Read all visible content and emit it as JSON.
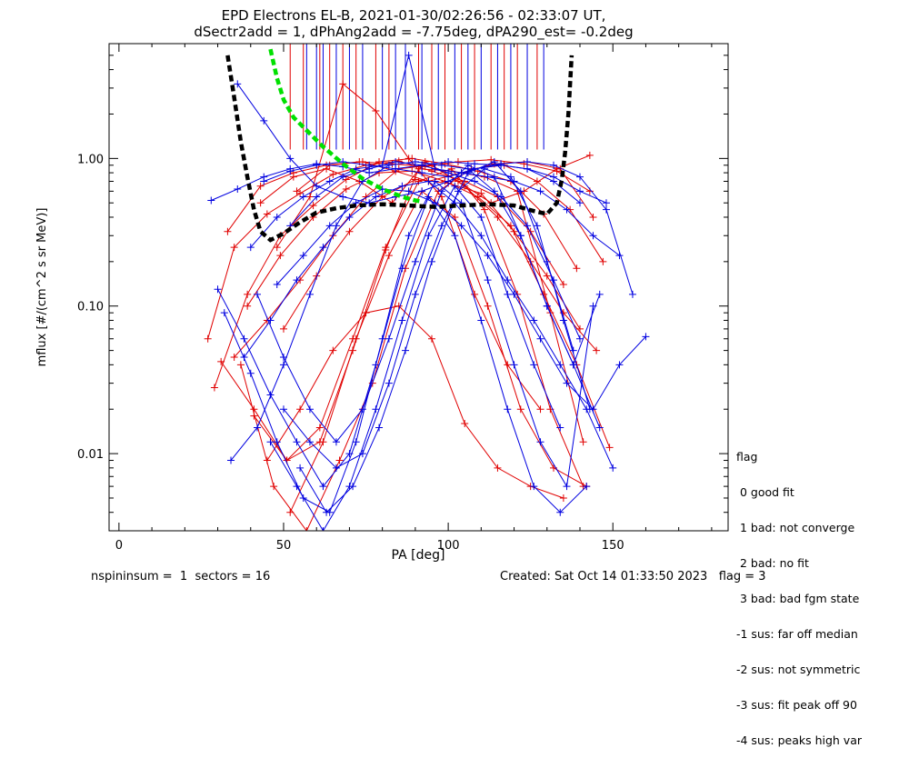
{
  "page": {
    "title_line1": "EPD Electrons EL-B, 2021-01-30/02:26:56 - 02:33:07 UT,",
    "title_line2": "dSectr2add = 1, dPhAng2add = -7.75deg, dPA290_est=  -0.2deg",
    "footer_left": "nspininsum =  1  sectors = 16",
    "footer_right": "Created: Sat Oct 14 01:33:50 2023   flag = 3"
  },
  "legend": {
    "title": "flag",
    "items": [
      " 0 good fit",
      " 1 bad: not converge",
      " 2 bad: no fit",
      " 3 bad: bad fgm state",
      "-1 sus: far off median",
      "-2 sus: not symmetric",
      "-3 sus: fit peak off 90",
      "-4 sus: peaks high var"
    ]
  },
  "colors": {
    "series_red": "#e00000",
    "series_blue": "#0000e0",
    "fit_black": "#000000",
    "fit_green": "#00e000"
  },
  "chart_data": {
    "type": "line",
    "xlabel": "PA [deg]",
    "ylabel": "mflux [#/(cm^2 s sr MeV)]",
    "xlim": [
      -3,
      185
    ],
    "ylim": [
      0.003,
      6.0
    ],
    "yscale": "log",
    "xticks": [
      0,
      50,
      100,
      150
    ],
    "xtick_labels": [
      "0",
      "50",
      "100",
      "150"
    ],
    "yticks": [
      0.01,
      0.1,
      1.0
    ],
    "ytick_labels": [
      "0.01",
      "0.10",
      "1.00"
    ],
    "vertical_lines": {
      "y_from": 1.15,
      "red_x": [
        52,
        56,
        61,
        64,
        68,
        72,
        78,
        82,
        91,
        95,
        99,
        104,
        108,
        113,
        117,
        121,
        127
      ],
      "blue_x": [
        57,
        60,
        62,
        66,
        70,
        74,
        80,
        84,
        87,
        92,
        97,
        102,
        106,
        110,
        115,
        119,
        124,
        129
      ]
    },
    "series": [
      {
        "color": "black",
        "style": "dashed",
        "x": [
          33,
          35,
          37,
          39,
          41,
          43,
          46,
          50,
          55,
          60,
          66,
          72,
          80,
          88,
          96,
          104,
          112,
          120,
          126,
          130,
          133,
          134.5,
          135.5,
          136.5,
          137.5
        ],
        "y": [
          5.0,
          2.6,
          1.3,
          0.75,
          0.45,
          0.32,
          0.28,
          0.31,
          0.37,
          0.43,
          0.46,
          0.48,
          0.49,
          0.48,
          0.47,
          0.48,
          0.49,
          0.48,
          0.44,
          0.42,
          0.5,
          0.72,
          1.1,
          2.0,
          5.0
        ]
      },
      {
        "color": "green",
        "style": "dashed",
        "x": [
          46,
          48,
          50,
          53,
          57,
          62,
          68,
          74,
          80,
          86,
          90,
          92
        ],
        "y": [
          5.5,
          3.5,
          2.5,
          1.9,
          1.55,
          1.2,
          0.92,
          0.73,
          0.62,
          0.55,
          0.52,
          0.51
        ]
      },
      {
        "color": "red",
        "style": "solid",
        "x": [
          27,
          35,
          45,
          55,
          65,
          75,
          85,
          95,
          105,
          115,
          125,
          135
        ],
        "y": [
          0.06,
          0.25,
          0.42,
          0.58,
          0.78,
          0.9,
          0.96,
          0.82,
          0.7,
          0.55,
          0.32,
          0.14
        ]
      },
      {
        "color": "red",
        "style": "solid",
        "x": [
          29,
          39,
          49,
          59,
          69,
          79,
          89,
          99,
          109,
          119,
          129,
          139
        ],
        "y": [
          0.028,
          0.12,
          0.3,
          0.48,
          0.72,
          0.95,
          1.0,
          0.92,
          0.82,
          0.7,
          0.42,
          0.18
        ]
      },
      {
        "color": "red",
        "style": "solid",
        "x": [
          31,
          41,
          51,
          61,
          71,
          81,
          91,
          101,
          111,
          121,
          131,
          141
        ],
        "y": [
          0.042,
          0.02,
          0.009,
          0.012,
          0.05,
          0.24,
          0.85,
          0.82,
          0.75,
          0.6,
          0.09,
          0.012
        ]
      },
      {
        "color": "red",
        "style": "solid",
        "x": [
          33,
          43,
          53,
          63,
          73,
          83,
          93,
          103,
          113,
          123,
          133,
          143
        ],
        "y": [
          0.32,
          0.65,
          0.8,
          0.9,
          0.95,
          0.92,
          0.88,
          0.95,
          0.98,
          0.92,
          0.82,
          0.6
        ]
      },
      {
        "color": "red",
        "style": "solid",
        "x": [
          35,
          45,
          55,
          65,
          75,
          85,
          95,
          105,
          115,
          125,
          135,
          145
        ],
        "y": [
          0.045,
          0.08,
          0.15,
          0.3,
          0.55,
          0.85,
          0.9,
          0.65,
          0.4,
          0.2,
          0.09,
          0.05
        ]
      },
      {
        "color": "red",
        "style": "solid",
        "x": [
          37,
          47,
          57,
          67,
          77,
          87,
          97,
          107,
          117,
          127,
          137,
          147
        ],
        "y": [
          0.04,
          0.006,
          0.003,
          0.009,
          0.03,
          0.18,
          0.6,
          0.85,
          0.9,
          0.7,
          0.45,
          0.2
        ]
      },
      {
        "color": "red",
        "style": "solid",
        "x": [
          39,
          49,
          59,
          69,
          79,
          89,
          99,
          109,
          119,
          129,
          139,
          149
        ],
        "y": [
          0.1,
          0.22,
          0.4,
          0.62,
          0.8,
          0.82,
          0.7,
          0.55,
          0.35,
          0.12,
          0.04,
          0.011
        ]
      },
      {
        "color": "red",
        "style": "solid",
        "x": [
          41,
          51,
          61,
          71,
          81,
          91,
          101,
          111,
          121,
          131,
          141
        ],
        "y": [
          0.018,
          0.009,
          0.015,
          0.06,
          0.25,
          0.7,
          0.85,
          0.45,
          0.12,
          0.02,
          0.006
        ]
      },
      {
        "color": "red",
        "style": "solid",
        "x": [
          43,
          53,
          63,
          73,
          83,
          93,
          103,
          113,
          123,
          133,
          143
        ],
        "y": [
          0.5,
          0.75,
          0.85,
          0.7,
          0.5,
          0.95,
          0.7,
          0.5,
          0.6,
          0.85,
          1.05
        ]
      },
      {
        "color": "red",
        "style": "solid",
        "x": [
          45,
          55,
          65,
          75,
          85,
          95,
          105,
          115,
          125,
          135
        ],
        "y": [
          0.009,
          0.02,
          0.05,
          0.09,
          0.1,
          0.06,
          0.016,
          0.008,
          0.006,
          0.005
        ]
      },
      {
        "color": "red",
        "style": "solid",
        "x": [
          48,
          58,
          68,
          78,
          88,
          98,
          108,
          118,
          128
        ],
        "y": [
          0.25,
          0.55,
          3.2,
          2.1,
          1.0,
          0.55,
          0.12,
          0.04,
          0.02
        ]
      },
      {
        "color": "red",
        "style": "solid",
        "x": [
          50,
          60,
          70,
          80,
          90,
          100,
          110,
          120,
          130,
          140
        ],
        "y": [
          0.07,
          0.16,
          0.32,
          0.55,
          0.72,
          0.68,
          0.58,
          0.32,
          0.16,
          0.07
        ]
      },
      {
        "color": "red",
        "style": "solid",
        "x": [
          52,
          62,
          72,
          82,
          92,
          102,
          112,
          122,
          132,
          142
        ],
        "y": [
          0.004,
          0.012,
          0.06,
          0.22,
          0.6,
          0.4,
          0.1,
          0.02,
          0.008,
          0.006
        ]
      },
      {
        "color": "red",
        "style": "solid",
        "x": [
          54,
          64,
          74,
          84,
          94,
          104,
          114,
          124,
          134,
          144
        ],
        "y": [
          0.6,
          0.9,
          0.95,
          0.82,
          0.7,
          0.8,
          0.92,
          0.95,
          0.85,
          0.4
        ]
      },
      {
        "color": "blue",
        "style": "solid",
        "x": [
          28,
          36,
          44,
          52,
          60,
          68,
          76,
          84,
          92,
          100,
          108,
          116,
          124,
          132,
          140
        ],
        "y": [
          0.52,
          0.62,
          0.75,
          0.85,
          0.92,
          0.88,
          0.8,
          0.85,
          0.9,
          0.95,
          0.92,
          0.9,
          0.85,
          0.7,
          0.5
        ]
      },
      {
        "color": "blue",
        "style": "solid",
        "x": [
          30,
          38,
          46,
          54,
          62,
          70,
          78,
          86,
          94,
          102,
          110,
          118,
          126,
          134,
          142
        ],
        "y": [
          0.13,
          0.06,
          0.025,
          0.012,
          0.006,
          0.01,
          0.04,
          0.18,
          0.55,
          0.3,
          0.08,
          0.02,
          0.006,
          0.004,
          0.006
        ]
      },
      {
        "color": "blue",
        "style": "solid",
        "x": [
          32,
          40,
          48,
          56,
          64,
          72,
          80,
          88,
          96,
          104,
          112,
          120,
          128,
          136,
          144
        ],
        "y": [
          0.09,
          0.035,
          0.012,
          0.005,
          0.004,
          0.012,
          0.06,
          0.3,
          0.7,
          0.5,
          0.15,
          0.04,
          0.012,
          0.006,
          0.1
        ]
      },
      {
        "color": "blue",
        "style": "solid",
        "x": [
          34,
          42,
          50,
          58,
          66,
          74,
          82,
          90,
          98,
          106,
          114,
          122,
          130,
          138,
          146
        ],
        "y": [
          0.009,
          0.015,
          0.04,
          0.12,
          0.35,
          0.7,
          0.9,
          0.95,
          0.9,
          0.85,
          0.6,
          0.3,
          0.1,
          0.04,
          0.015
        ]
      },
      {
        "color": "blue",
        "style": "solid",
        "x": [
          36,
          44,
          52,
          60,
          68,
          76,
          84,
          92,
          100,
          108,
          116,
          124,
          132,
          140,
          148
        ],
        "y": [
          3.2,
          1.8,
          1.0,
          0.65,
          0.55,
          0.5,
          0.55,
          0.6,
          0.7,
          0.85,
          0.9,
          0.85,
          0.75,
          0.6,
          0.5
        ]
      },
      {
        "color": "blue",
        "style": "solid",
        "x": [
          38,
          46,
          54,
          62,
          70,
          78,
          86,
          94,
          102,
          110,
          118,
          126,
          134,
          142,
          150
        ],
        "y": [
          0.045,
          0.08,
          0.15,
          0.25,
          0.4,
          0.55,
          0.65,
          0.7,
          0.5,
          0.3,
          0.15,
          0.08,
          0.04,
          0.02,
          0.008
        ]
      },
      {
        "color": "blue",
        "style": "solid",
        "x": [
          40,
          48,
          56,
          64,
          72,
          80,
          88,
          96,
          104,
          112,
          120,
          128,
          136,
          144,
          152
        ],
        "y": [
          0.25,
          0.4,
          0.55,
          0.7,
          0.85,
          0.9,
          5.0,
          0.85,
          0.8,
          0.75,
          0.7,
          0.6,
          0.45,
          0.3,
          0.22
        ]
      },
      {
        "color": "blue",
        "style": "solid",
        "x": [
          42,
          50,
          58,
          66,
          74,
          82,
          90,
          98,
          106,
          114,
          122,
          130,
          138,
          146
        ],
        "y": [
          0.12,
          0.045,
          0.02,
          0.012,
          0.02,
          0.06,
          0.2,
          0.6,
          0.9,
          0.75,
          0.3,
          0.1,
          0.04,
          0.12
        ]
      },
      {
        "color": "blue",
        "style": "solid",
        "x": [
          44,
          52,
          60,
          68,
          76,
          84,
          92,
          100,
          108,
          116,
          124,
          132,
          140,
          148,
          156
        ],
        "y": [
          0.7,
          0.82,
          0.9,
          0.95,
          0.9,
          0.85,
          0.8,
          0.75,
          0.85,
          0.92,
          0.95,
          0.9,
          0.75,
          0.45,
          0.12
        ]
      },
      {
        "color": "blue",
        "style": "solid",
        "x": [
          46,
          54,
          62,
          70,
          78,
          86,
          94,
          102,
          110,
          118,
          126,
          134
        ],
        "y": [
          0.012,
          0.006,
          0.003,
          0.006,
          0.02,
          0.08,
          0.3,
          0.65,
          0.4,
          0.12,
          0.04,
          0.015
        ]
      },
      {
        "color": "blue",
        "style": "solid",
        "x": [
          48,
          56,
          64,
          72,
          80,
          88,
          96,
          104,
          112,
          120,
          128,
          136,
          144,
          152,
          160
        ],
        "y": [
          0.14,
          0.22,
          0.35,
          0.5,
          0.62,
          0.6,
          0.5,
          0.35,
          0.22,
          0.12,
          0.06,
          0.03,
          0.02,
          0.04,
          0.062
        ]
      },
      {
        "color": "blue",
        "style": "solid",
        "x": [
          50,
          58,
          66,
          74,
          82,
          90,
          98,
          106,
          114,
          122,
          130,
          138
        ],
        "y": [
          0.02,
          0.012,
          0.008,
          0.01,
          0.03,
          0.12,
          0.35,
          0.8,
          0.95,
          0.6,
          0.2,
          0.05
        ]
      },
      {
        "color": "blue",
        "style": "solid",
        "x": [
          52,
          60,
          68,
          76,
          84,
          92,
          100,
          108,
          116,
          124,
          132,
          140
        ],
        "y": [
          0.35,
          0.55,
          0.75,
          0.85,
          0.95,
          0.9,
          0.8,
          0.7,
          0.55,
          0.35,
          0.15,
          0.06
        ]
      },
      {
        "color": "blue",
        "style": "solid",
        "x": [
          55,
          63,
          71,
          79,
          87,
          95,
          103,
          111,
          119,
          127,
          135,
          143
        ],
        "y": [
          0.008,
          0.004,
          0.006,
          0.015,
          0.05,
          0.2,
          0.6,
          0.85,
          0.75,
          0.35,
          0.08,
          0.02
        ]
      }
    ]
  }
}
